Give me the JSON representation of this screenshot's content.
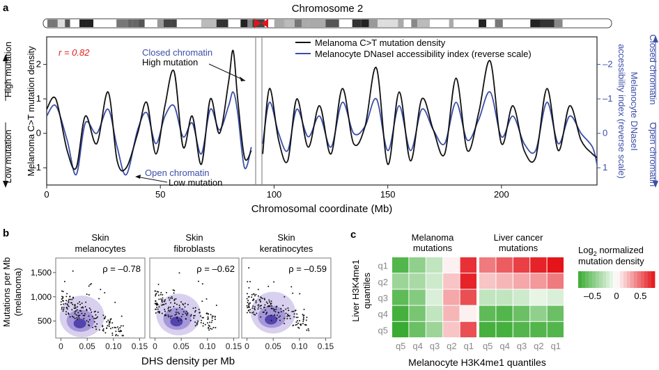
{
  "panel_labels": {
    "a": "a",
    "b": "b",
    "c": "c"
  },
  "colors": {
    "black_series": "#111111",
    "blue_series": "#3b4ea8",
    "annotation_red": "#e0201a",
    "axis_blue": "#3b4ea8",
    "heat_green": "#3aab32",
    "heat_red": "#e3141a"
  },
  "panel_a": {
    "chromosome_title": "Chromosome 2",
    "y_left_label_line1": "Melanoma C>T mutation density",
    "y_left_side_top": "High mutation",
    "y_left_side_bottom": "Low mutation",
    "y_right_label_line1": "Melanocyte DNaseI",
    "y_right_label_line2": "accessibility index (reverse scale)",
    "y_right_side_top": "Closed chromatin",
    "y_right_side_bottom": "Open chromatin",
    "x_label": "Chromosomal coordinate (Mb)",
    "r_value": "r = 0.82",
    "ann_closed": "Closed chromatin",
    "ann_high": "High mutation",
    "ann_open": "Open chromatin",
    "ann_low": "Low mutation",
    "legend_black": "Melanoma C>T mutation density",
    "legend_blue": "Melanocyte DNaseI accessibility index (reverse scale)"
  },
  "panel_b": {
    "y_label_line1": "Mutations per Mb",
    "y_label_line2": "(melanoma)",
    "x_label": "DHS density per Mb",
    "plots": [
      {
        "title_line1": "Skin",
        "title_line2": "melanocytes",
        "rho": "ρ = –0.78"
      },
      {
        "title_line1": "Skin",
        "title_line2": "fibroblasts",
        "rho": "ρ = –0.62"
      },
      {
        "title_line1": "Skin",
        "title_line2": "keratinocytes",
        "rho": "ρ = –0.59"
      }
    ]
  },
  "panel_c": {
    "col_group_1_line1": "Melanoma",
    "col_group_1_line2": "mutations",
    "col_group_2_line1": "Liver cancer",
    "col_group_2_line2": "mutations",
    "y_label_line1": "Liver H3K4me1",
    "y_label_line2": "quantiles",
    "x_label": "Melanocyte H3K4me1 quantiles",
    "colorbar_title_line1": "Log",
    "colorbar_title_sub": "2",
    "colorbar_title_line1b": " normalized",
    "colorbar_title_line2": "mutation density",
    "colorbar_ticks": [
      "–0.5",
      "0",
      "0.5"
    ],
    "row_labels": [
      "q1",
      "q2",
      "q3",
      "q4",
      "q5"
    ],
    "col_labels": [
      "q5",
      "q4",
      "q3",
      "q2",
      "q1",
      "q5",
      "q4",
      "q3",
      "q2",
      "q1"
    ]
  },
  "chart_data": [
    {
      "type": "line",
      "title": "Chromosome 2",
      "xlabel": "Chromosomal coordinate (Mb)",
      "ylabel": "Melanoma C>T mutation density",
      "y2label": "Melanocyte DNaseI accessibility index (reverse scale)",
      "xlim": [
        0,
        242
      ],
      "ylim": [
        -1.5,
        2.8
      ],
      "y2lim": [
        1.5,
        -2.8
      ],
      "x_ticks": [
        "0",
        "50",
        "100",
        "150",
        "200"
      ],
      "y_ticks": [
        "2",
        "1",
        "0",
        "–1"
      ],
      "y2_ticks": [
        "–2",
        "–1",
        "0",
        "1"
      ],
      "legend": "top-right",
      "series": [
        {
          "name": "Melanoma C>T mutation density",
          "x": [
            0,
            4,
            9,
            13,
            17,
            22,
            27,
            31,
            35,
            40,
            44,
            48,
            52,
            56,
            60,
            64,
            68,
            72,
            76,
            80,
            82,
            84,
            87,
            90,
            93,
            95,
            98,
            102,
            106,
            110,
            115,
            120,
            125,
            130,
            135,
            140,
            145,
            150,
            155,
            160,
            165,
            170,
            175,
            180,
            185,
            190,
            195,
            200,
            205,
            210,
            215,
            220,
            225,
            230,
            235,
            240,
            242
          ],
          "y": [
            0.7,
            1.0,
            -0.5,
            -1.0,
            0.5,
            -0.3,
            1.2,
            -0.8,
            -1.0,
            0.0,
            0.9,
            -0.6,
            0.8,
            1.8,
            -0.4,
            0.5,
            -0.9,
            1.0,
            0.0,
            1.5,
            2.4,
            1.0,
            -0.7,
            -0.5,
            -0.1,
            -0.6,
            1.3,
            -0.2,
            -0.8,
            1.0,
            -0.4,
            0.8,
            -0.6,
            1.3,
            -0.3,
            0.2,
            1.9,
            -0.9,
            1.2,
            -0.8,
            1.0,
            0.1,
            -0.6,
            1.6,
            -0.5,
            0.6,
            2.1,
            -0.3,
            0.8,
            -0.5,
            -0.7,
            1.3,
            -0.5,
            0.8,
            -0.2,
            -0.6,
            -0.7
          ]
        },
        {
          "name": "Melanocyte DNaseI accessibility index (reverse scale)",
          "x": [
            0,
            4,
            9,
            13,
            17,
            22,
            27,
            31,
            35,
            40,
            44,
            48,
            52,
            56,
            60,
            64,
            68,
            72,
            76,
            80,
            82,
            84,
            87,
            90,
            93,
            95,
            98,
            102,
            106,
            110,
            115,
            120,
            125,
            130,
            135,
            140,
            145,
            150,
            155,
            160,
            165,
            170,
            175,
            180,
            185,
            190,
            195,
            200,
            205,
            210,
            215,
            220,
            225,
            230,
            235,
            240,
            242
          ],
          "y": [
            0.5,
            0.8,
            -0.2,
            -1.2,
            0.3,
            0.0,
            0.7,
            -0.4,
            -1.2,
            0.1,
            0.6,
            -0.3,
            0.5,
            0.8,
            -0.1,
            0.3,
            -0.6,
            0.7,
            0.1,
            0.8,
            1.2,
            0.6,
            -1.0,
            -0.4,
            -0.2,
            -0.3,
            0.9,
            0.0,
            -0.5,
            0.7,
            -0.1,
            0.5,
            -0.4,
            0.9,
            0.0,
            0.2,
            1.0,
            -0.5,
            0.8,
            -0.5,
            0.7,
            0.1,
            -0.3,
            0.9,
            -0.2,
            0.4,
            1.2,
            -0.1,
            0.5,
            -0.3,
            -0.5,
            0.9,
            -0.3,
            0.5,
            0.0,
            -0.4,
            -0.9
          ]
        }
      ]
    },
    {
      "type": "scatter",
      "title": "Skin melanocytes",
      "xlabel": "DHS density per Mb",
      "ylabel": "Mutations per Mb (melanoma)",
      "xlim": [
        -0.01,
        0.16
      ],
      "ylim": [
        150,
        1800
      ],
      "x_ticks": [
        "0",
        "0.05",
        "0.10",
        "0.15"
      ],
      "y_ticks": [
        "500",
        "1,000",
        "1,500"
      ],
      "rho": -0.78
    },
    {
      "type": "scatter",
      "title": "Skin fibroblasts",
      "xlabel": "DHS density per Mb",
      "xlim": [
        -0.01,
        0.16
      ],
      "ylim": [
        150,
        1800
      ],
      "x_ticks": [
        "0",
        "0.05",
        "0.10",
        "0.15"
      ],
      "rho": -0.62
    },
    {
      "type": "scatter",
      "title": "Skin keratinocytes",
      "xlabel": "DHS density per Mb",
      "xlim": [
        -0.01,
        0.16
      ],
      "ylim": [
        150,
        1800
      ],
      "x_ticks": [
        "0",
        "0.05",
        "0.10",
        "0.15"
      ],
      "rho": -0.59
    },
    {
      "type": "heatmap",
      "xlabel": "Melanocyte H3K4me1 quantiles",
      "ylabel": "Liver H3K4me1 quantiles",
      "rows": [
        "q1",
        "q2",
        "q3",
        "q4",
        "q5"
      ],
      "columns": [
        "q5",
        "q4",
        "q3",
        "q2",
        "q1",
        "q5",
        "q4",
        "q3",
        "q2",
        "q1"
      ],
      "column_groups": [
        "Melanoma mutations",
        "Liver cancer mutations"
      ],
      "colorbar_range": [
        -0.8,
        0.8
      ],
      "values": [
        [
          -0.7,
          -0.45,
          -0.25,
          0.05,
          0.7,
          0.45,
          0.55,
          0.65,
          0.75,
          0.8
        ],
        [
          -0.4,
          -0.35,
          -0.2,
          0.2,
          0.75,
          0.2,
          0.25,
          0.3,
          0.35,
          0.45
        ],
        [
          -0.65,
          -0.5,
          -0.15,
          0.3,
          0.6,
          -0.25,
          -0.25,
          -0.2,
          -0.1,
          -0.15
        ],
        [
          -0.75,
          -0.55,
          -0.25,
          0.25,
          0.05,
          -0.65,
          -0.7,
          -0.6,
          -0.45,
          -0.6
        ],
        [
          -0.8,
          -0.6,
          -0.4,
          0.2,
          0.6,
          -0.75,
          -0.75,
          -0.7,
          -0.7,
          -0.7
        ]
      ]
    }
  ]
}
